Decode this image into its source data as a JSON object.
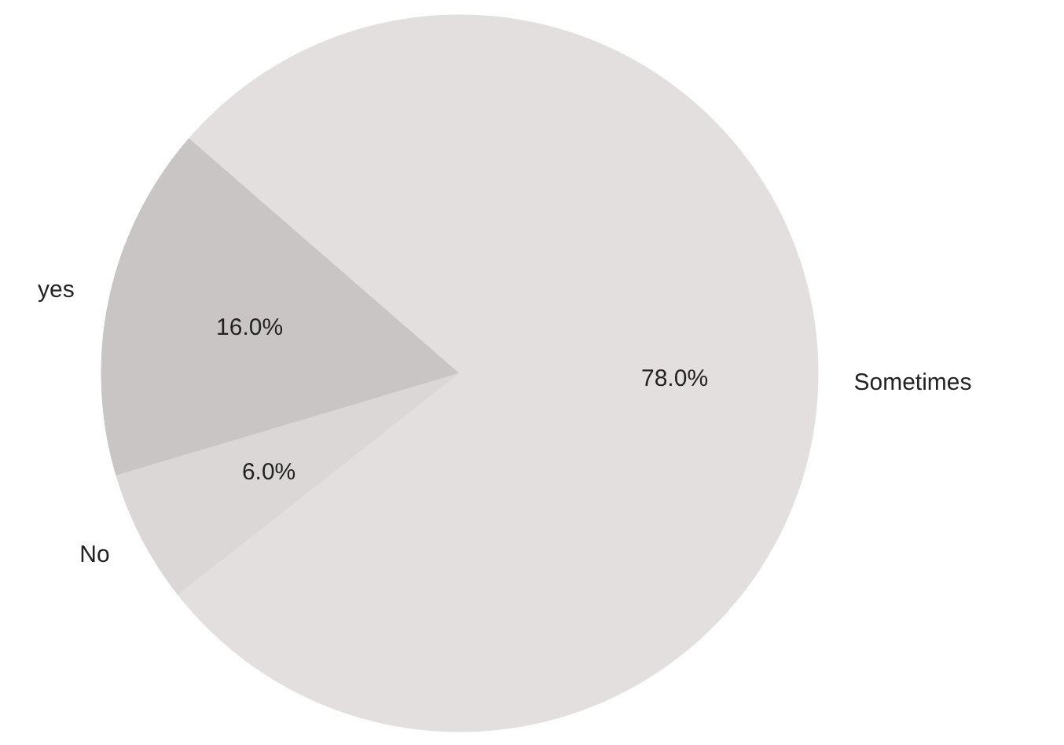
{
  "chart_data": {
    "type": "pie",
    "categories": [
      "yes",
      "No",
      "Sometimes"
    ],
    "values": [
      16.0,
      6.0,
      78.0
    ],
    "colors": [
      "#c9c5c5",
      "#dcd7d7",
      "#e3dfdf"
    ],
    "value_labels": [
      "16.0%",
      "6.0%",
      "78.0%"
    ]
  }
}
